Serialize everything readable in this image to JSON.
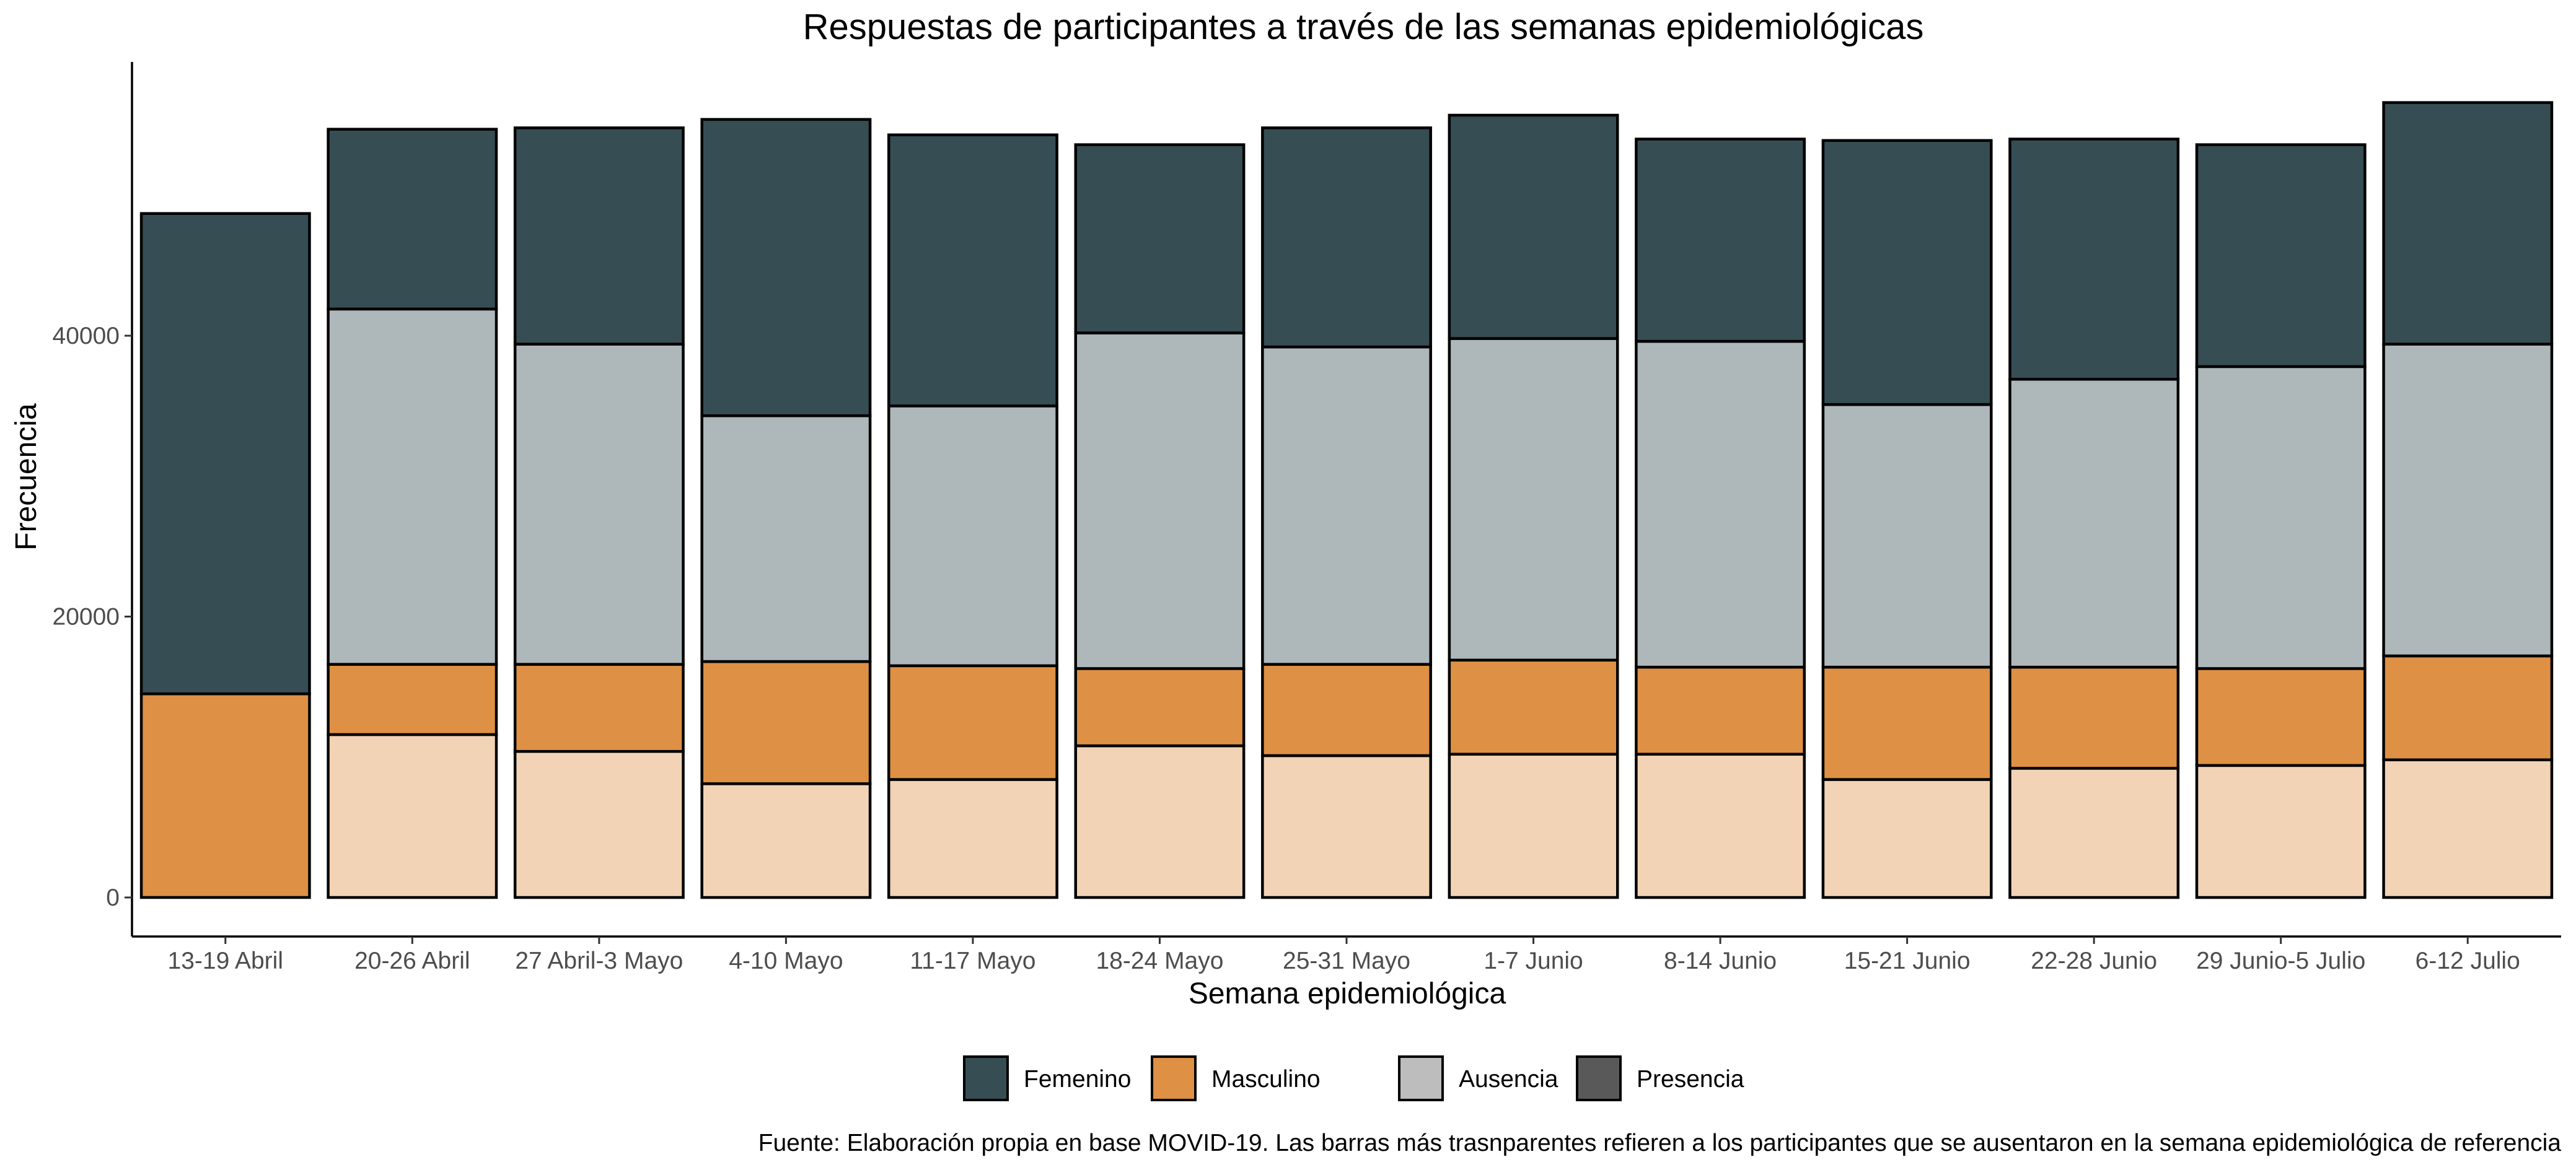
{
  "chart_data": {
    "type": "bar",
    "stacked": true,
    "title": "Respuestas de participantes a través de las semanas epidemiológicas",
    "xlabel": "Semana epidemiológica",
    "ylabel": "Frecuencia",
    "ylim": [
      0,
      58000
    ],
    "yticks": [
      0,
      20000,
      40000
    ],
    "grid": false,
    "legend_position": "bottom",
    "caption": "Fuente: Elaboración propia en base MOVID-19. Las barras más trasnparentes refieren a los participantes que se ausentaron en la semana epidemiológica de referencia",
    "categories": [
      "13-19 Abril",
      "20-26 Abril",
      "27 Abril-3 Mayo",
      "4-10 Mayo",
      "11-17 Mayo",
      "18-24 Mayo",
      "25-31 Mayo",
      "1-7 Junio",
      "8-14 Junio",
      "15-21 Junio",
      "22-28 Junio",
      "29 Junio-5 Julio",
      "6-12 Julio"
    ],
    "series": [
      {
        "sexo": "Masculino",
        "participacion": "Ausencia",
        "color": "#F2D3B6",
        "values": [
          0,
          11600,
          10400,
          8100,
          8400,
          10800,
          10100,
          10200,
          10200,
          8400,
          9200,
          9400,
          9800
        ]
      },
      {
        "sexo": "Masculino",
        "participacion": "Presencia",
        "color": "#DE9044",
        "values": [
          14500,
          5000,
          6200,
          8700,
          8100,
          5500,
          6500,
          6700,
          6200,
          8000,
          7200,
          6900,
          7400
        ]
      },
      {
        "sexo": "Femenino",
        "participacion": "Ausencia",
        "color": "#AEB7BA",
        "values": [
          0,
          25300,
          22800,
          17500,
          18500,
          23900,
          22600,
          22900,
          23200,
          18700,
          20500,
          21500,
          22200
        ]
      },
      {
        "sexo": "Femenino",
        "participacion": "Presencia",
        "color": "#364D54",
        "values": [
          34200,
          12800,
          15400,
          21100,
          19300,
          13400,
          15600,
          15900,
          14400,
          18800,
          17100,
          15800,
          17200
        ]
      }
    ],
    "legend": [
      {
        "label": "Femenino",
        "color": "#364D54"
      },
      {
        "label": "Masculino",
        "color": "#DE9044"
      },
      {
        "label": "Ausencia",
        "color": "#BDBDBD"
      },
      {
        "label": "Presencia",
        "color": "#595959"
      }
    ]
  }
}
